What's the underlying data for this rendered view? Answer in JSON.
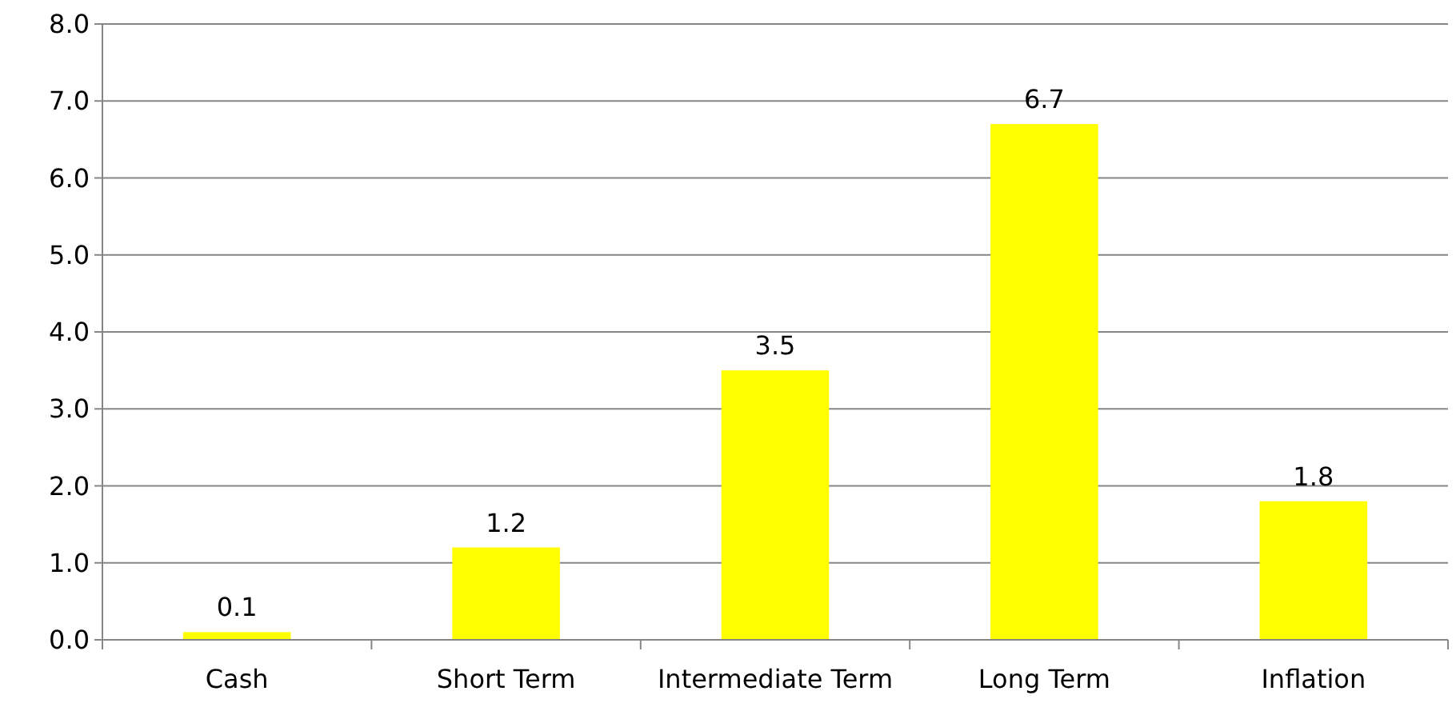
{
  "chart_data": {
    "type": "bar",
    "categories": [
      "Cash",
      "Short Term",
      "Intermediate Term",
      "Long Term",
      "Inflation"
    ],
    "values": [
      0.1,
      1.2,
      3.5,
      6.7,
      1.8
    ],
    "color": "#ffff00",
    "ylim": [
      0,
      8
    ],
    "yticks": [
      "0.0",
      "1.0",
      "2.0",
      "3.0",
      "4.0",
      "5.0",
      "6.0",
      "7.0",
      "8.0"
    ],
    "grid": "y",
    "data_labels": true
  }
}
